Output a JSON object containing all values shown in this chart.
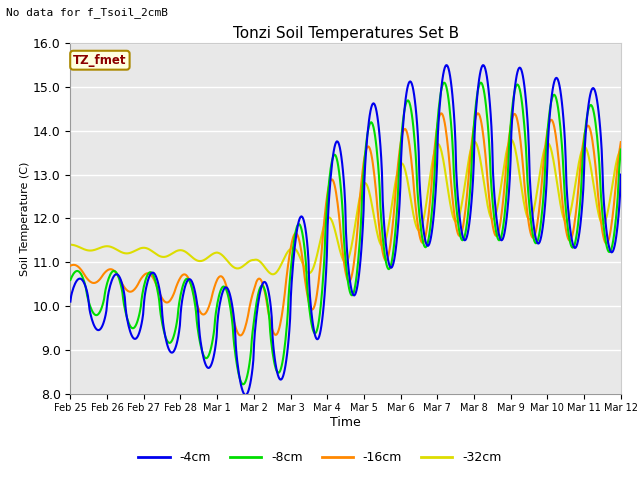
{
  "title": "Tonzi Soil Temperatures Set B",
  "xlabel": "Time",
  "ylabel": "Soil Temperature (C)",
  "note": "No data for f_Tsoil_2cmB",
  "legend_label": "TZ_fmet",
  "ylim": [
    8.0,
    16.0
  ],
  "yticks": [
    8.0,
    9.0,
    10.0,
    11.0,
    12.0,
    13.0,
    14.0,
    15.0,
    16.0
  ],
  "xtick_labels": [
    "Feb 25",
    "Feb 26",
    "Feb 27",
    "Feb 28",
    "Mar 1",
    "Mar 2",
    "Mar 3",
    "Mar 4",
    "Mar 5",
    "Mar 6",
    "Mar 7",
    "Mar 8",
    "Mar 9",
    "Mar 10",
    "Mar 11",
    "Mar 12"
  ],
  "colors": {
    "4cm": "#0000ee",
    "8cm": "#00dd00",
    "16cm": "#ff8800",
    "32cm": "#dddd00"
  },
  "legend_entries": [
    "-4cm",
    "-8cm",
    "-16cm",
    "-32cm"
  ],
  "bg_color": "#e8e8e8",
  "fig_bg": "#ffffff"
}
